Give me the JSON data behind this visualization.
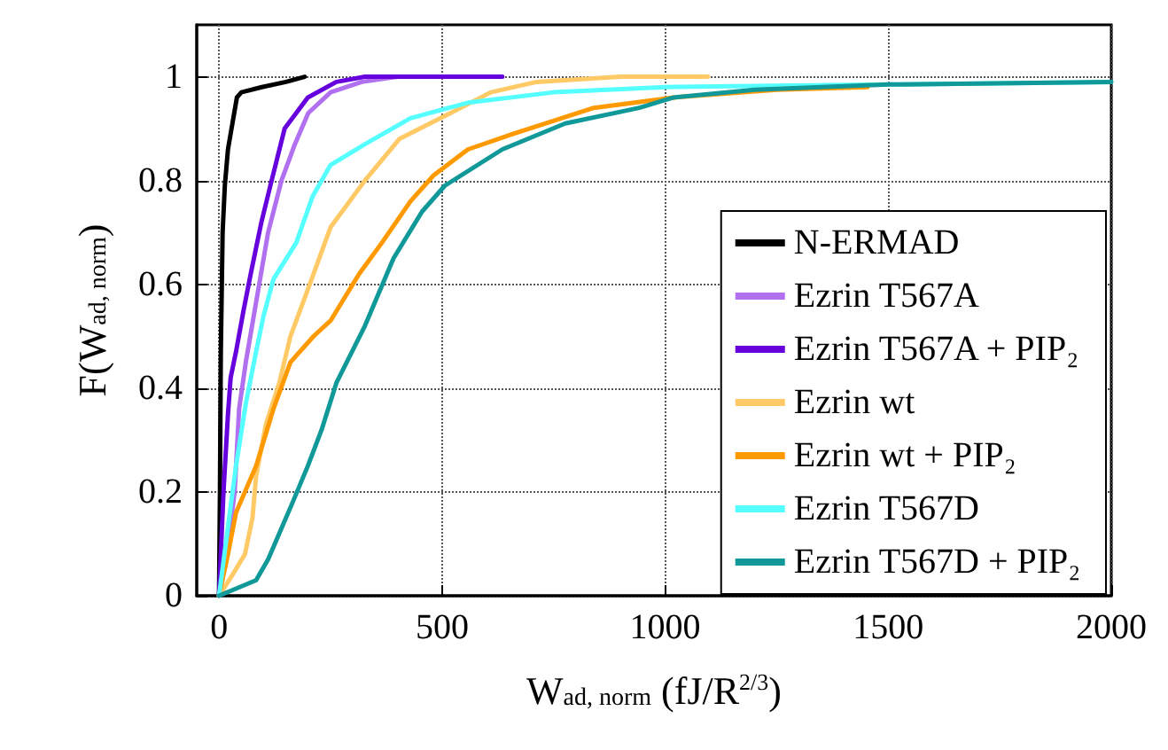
{
  "chart_data": {
    "type": "line",
    "xlabel": "W$_{ad, norm}$ (fJ/R$^{2/3}$)",
    "ylabel": "F(W$_{ad, norm}$)",
    "xlim": [
      -50,
      2000
    ],
    "xticks": [
      0,
      500,
      1000,
      1500,
      2000
    ],
    "ylim": [
      0,
      1.1
    ],
    "yticks": [
      0,
      0.2,
      0.4,
      0.6,
      0.8,
      1
    ],
    "grid": true,
    "legend": "bottom right",
    "marker": "none",
    "line_style": "solid",
    "series": [
      {
        "name": "N-ERMAD",
        "color": "#000000",
        "x": [
          0,
          2,
          4,
          8,
          13,
          20,
          26,
          40,
          50,
          96,
          150,
          192
        ],
        "values": [
          0,
          0.2,
          0.47,
          0.7,
          0.79,
          0.86,
          0.89,
          0.96,
          0.97,
          0.98,
          0.99,
          1.0
        ]
      },
      {
        "name": "Ezrin T567A",
        "color": "#b070f0",
        "x": [
          0,
          20,
          35,
          45,
          60,
          80,
          110,
          140,
          170,
          200,
          250,
          320,
          400
        ],
        "values": [
          0,
          0.1,
          0.2,
          0.36,
          0.45,
          0.55,
          0.7,
          0.8,
          0.87,
          0.93,
          0.97,
          0.99,
          1.0
        ]
      },
      {
        "name": "Ezrin T567A + PIP₂",
        "color": "#6600dd",
        "x": [
          0,
          10,
          20,
          26,
          38,
          55,
          71,
          95,
          115,
          147,
          199,
          263,
          327,
          635
        ],
        "values": [
          0,
          0.2,
          0.35,
          0.42,
          0.47,
          0.55,
          0.62,
          0.72,
          0.79,
          0.9,
          0.96,
          0.99,
          1.0,
          1.0
        ]
      },
      {
        "name": "Ezrin wt",
        "color": "#ffc966",
        "x": [
          0,
          30,
          58,
          75,
          83,
          105,
          135,
          160,
          199,
          250,
          327,
          404,
          519,
          609,
          712,
          900,
          1096
        ],
        "values": [
          0,
          0.04,
          0.08,
          0.15,
          0.23,
          0.33,
          0.41,
          0.5,
          0.59,
          0.71,
          0.8,
          0.88,
          0.93,
          0.97,
          0.99,
          1.0,
          1.0
        ]
      },
      {
        "name": "Ezrin wt + PIP₂",
        "color": "#ff9900",
        "x": [
          0,
          20,
          38,
          83,
          122,
          160,
          212,
          250,
          314,
          365,
          429,
          481,
          558,
          660,
          840,
          1019,
          1250,
          1454
        ],
        "values": [
          0,
          0.08,
          0.16,
          0.25,
          0.36,
          0.45,
          0.5,
          0.53,
          0.62,
          0.68,
          0.76,
          0.81,
          0.86,
          0.89,
          0.94,
          0.96,
          0.975,
          0.98
        ]
      },
      {
        "name": "Ezrin T567D",
        "color": "#55ffff",
        "x": [
          0,
          15,
          38,
          60,
          83,
          100,
          122,
          173,
          210,
          250,
          327,
          429,
          558,
          750,
          1000,
          1500,
          2000
        ],
        "values": [
          0,
          0.1,
          0.25,
          0.37,
          0.47,
          0.54,
          0.61,
          0.68,
          0.77,
          0.83,
          0.87,
          0.92,
          0.95,
          0.97,
          0.98,
          0.985,
          0.99
        ]
      },
      {
        "name": "Ezrin T567D + PIP₂",
        "color": "#119999",
        "x": [
          0,
          83,
          110,
          135,
          165,
          199,
          230,
          263,
          327,
          391,
          455,
          506,
          635,
          776,
          942,
          1019,
          1200,
          1500,
          2000
        ],
        "values": [
          0,
          0.03,
          0.07,
          0.12,
          0.18,
          0.25,
          0.32,
          0.41,
          0.52,
          0.65,
          0.74,
          0.79,
          0.86,
          0.91,
          0.94,
          0.96,
          0.975,
          0.985,
          0.99
        ]
      }
    ]
  }
}
